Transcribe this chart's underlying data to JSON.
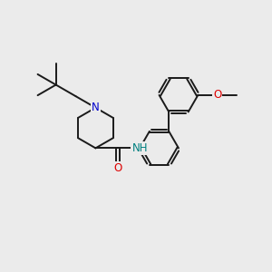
{
  "bg_color": "#ebebeb",
  "bond_color": "#1a1a1a",
  "bond_width": 1.4,
  "dbo": 0.055,
  "atom_colors": {
    "N_pip": "#0000cc",
    "N_amide": "#008080",
    "O": "#dd0000"
  },
  "fs": 8.5,
  "figsize": [
    3.0,
    3.0
  ],
  "dpi": 100
}
